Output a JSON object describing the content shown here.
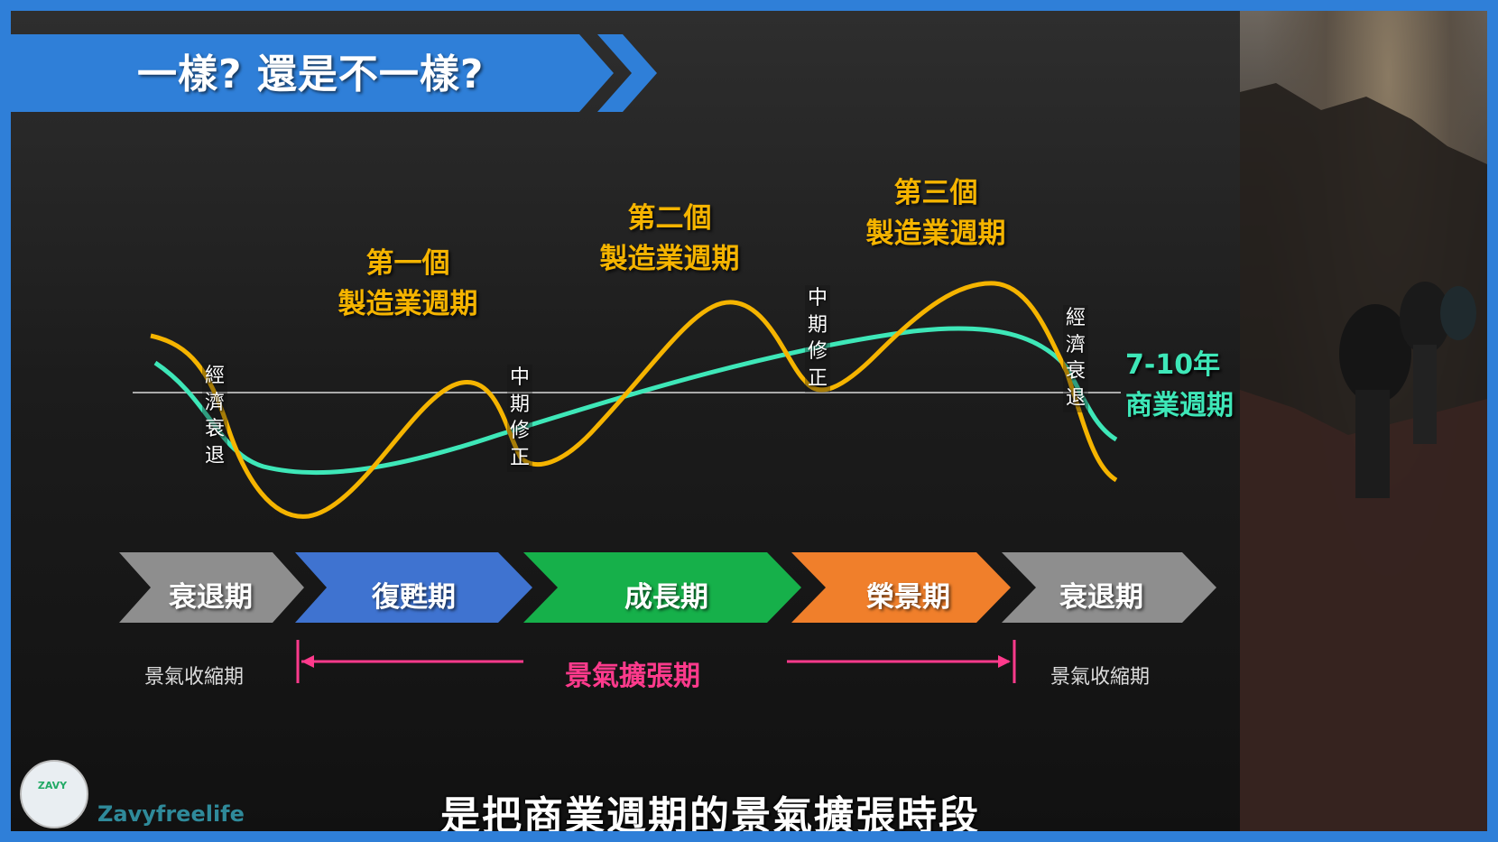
{
  "title": "一樣? 還是不一樣?",
  "cycle_labels": [
    {
      "line1": "第一個",
      "line2": "製造業週期"
    },
    {
      "line1": "第二個",
      "line2": "製造業週期"
    },
    {
      "line1": "第三個",
      "line2": "製造業週期"
    }
  ],
  "vertical_labels": [
    "經濟衰退",
    "中期修正",
    "中期修正",
    "經濟衰退"
  ],
  "business_cycle": {
    "line1": "7-10年",
    "line2": "商業週期"
  },
  "phases": [
    "衰退期",
    "復甦期",
    "成長期",
    "榮景期",
    "衰退期"
  ],
  "phase_colors": [
    "#8e8e8e",
    "#3f73d0",
    "#16b04a",
    "#f07f2b",
    "#8e8e8e"
  ],
  "curve_colors": {
    "manufacturing": "#f5b400",
    "business": "#3ee7b8"
  },
  "sub_labels": {
    "left": "景氣收縮期",
    "center": "景氣擴張期",
    "right": "景氣收縮期"
  },
  "brand": "Zavyfreelife",
  "logo_text": "ZAVY",
  "subtitle": "是把商業週期的景氣擴張時段"
}
